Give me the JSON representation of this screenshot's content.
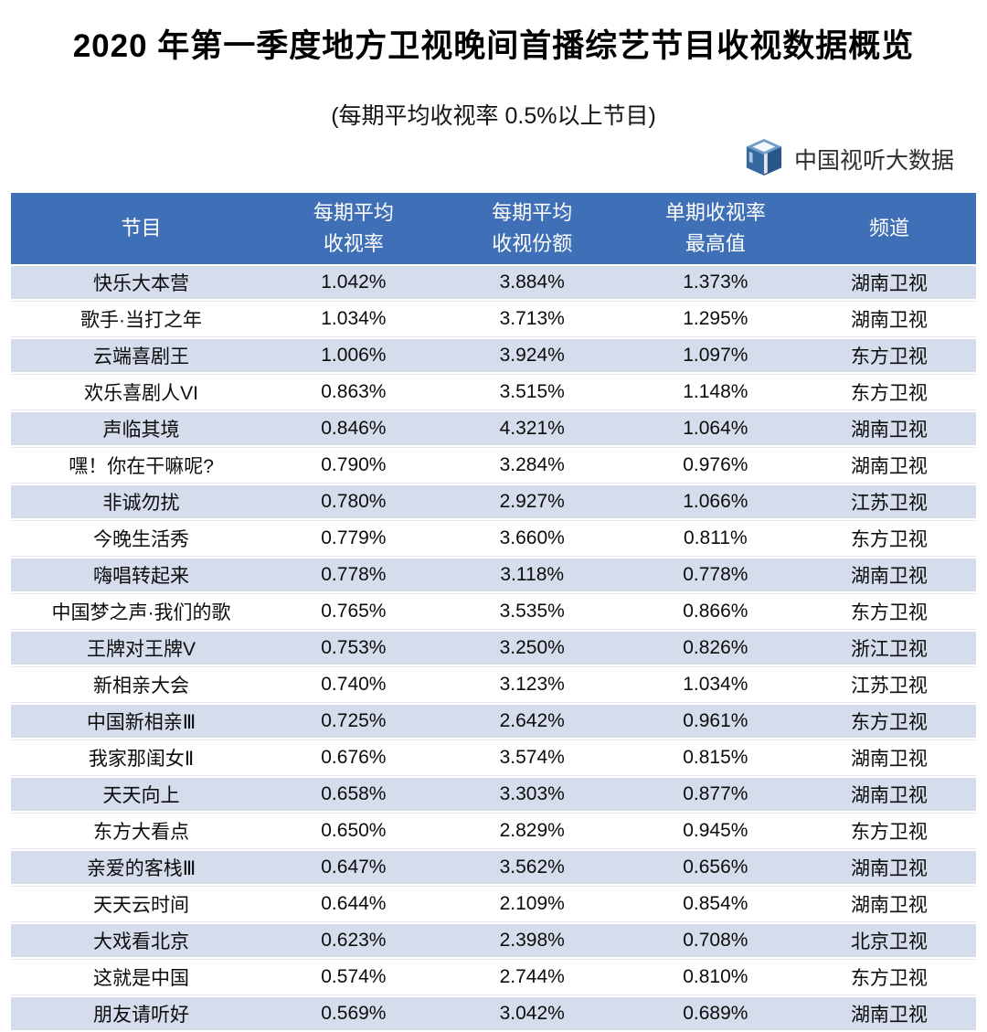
{
  "page": {
    "title": "2020 年第一季度地方卫视晚间首播综艺节目收视数据概览",
    "subtitle": "(每期平均收视率 0.5%以上节目)",
    "brand": {
      "icon": "cube-logo-icon",
      "name": "中国视听大数据"
    }
  },
  "colors": {
    "header_bg": "#3F6FB7",
    "row_alt_bg": "#D5DCEC",
    "row_bg": "#FFFFFF",
    "header_text": "#FFFFFF",
    "body_text": "#0C0C0C",
    "logo_blue_light": "#6E9CC8",
    "logo_blue_mid": "#35689E",
    "logo_blue_dark": "#2A5688"
  },
  "table": {
    "headers": [
      {
        "lines": [
          "节目"
        ]
      },
      {
        "lines": [
          "每期平均",
          "收视率"
        ]
      },
      {
        "lines": [
          "每期平均",
          "收视份额"
        ]
      },
      {
        "lines": [
          "单期收视率",
          "最高值"
        ]
      },
      {
        "lines": [
          "频道"
        ]
      }
    ]
  },
  "chart_data": {
    "type": "table",
    "title": "2020 年第一季度地方卫视晚间首播综艺节目收视数据概览",
    "subtitle": "(每期平均收视率 0.5%以上节目)",
    "source": "中国视听大数据",
    "columns": [
      "节目",
      "每期平均收视率",
      "每期平均收视份额",
      "单期收视率最高值",
      "频道"
    ],
    "rows": [
      [
        "快乐大本营",
        "1.042%",
        "3.884%",
        "1.373%",
        "湖南卫视"
      ],
      [
        "歌手·当打之年",
        "1.034%",
        "3.713%",
        "1.295%",
        "湖南卫视"
      ],
      [
        "云端喜剧王",
        "1.006%",
        "3.924%",
        "1.097%",
        "东方卫视"
      ],
      [
        "欢乐喜剧人VI",
        "0.863%",
        "3.515%",
        "1.148%",
        "东方卫视"
      ],
      [
        "声临其境",
        "0.846%",
        "4.321%",
        "1.064%",
        "湖南卫视"
      ],
      [
        "嘿！你在干嘛呢?",
        "0.790%",
        "3.284%",
        "0.976%",
        "湖南卫视"
      ],
      [
        "非诚勿扰",
        "0.780%",
        "2.927%",
        "1.066%",
        "江苏卫视"
      ],
      [
        "今晚生活秀",
        "0.779%",
        "3.660%",
        "0.811%",
        "东方卫视"
      ],
      [
        "嗨唱转起来",
        "0.778%",
        "3.118%",
        "0.778%",
        "湖南卫视"
      ],
      [
        "中国梦之声·我们的歌",
        "0.765%",
        "3.535%",
        "0.866%",
        "东方卫视"
      ],
      [
        "王牌对王牌V",
        "0.753%",
        "3.250%",
        "0.826%",
        "浙江卫视"
      ],
      [
        "新相亲大会",
        "0.740%",
        "3.123%",
        "1.034%",
        "江苏卫视"
      ],
      [
        "中国新相亲Ⅲ",
        "0.725%",
        "2.642%",
        "0.961%",
        "东方卫视"
      ],
      [
        "我家那闺女Ⅱ",
        "0.676%",
        "3.574%",
        "0.815%",
        "湖南卫视"
      ],
      [
        "天天向上",
        "0.658%",
        "3.303%",
        "0.877%",
        "湖南卫视"
      ],
      [
        "东方大看点",
        "0.650%",
        "2.829%",
        "0.945%",
        "东方卫视"
      ],
      [
        "亲爱的客栈Ⅲ",
        "0.647%",
        "3.562%",
        "0.656%",
        "湖南卫视"
      ],
      [
        "天天云时间",
        "0.644%",
        "2.109%",
        "0.854%",
        "湖南卫视"
      ],
      [
        "大戏看北京",
        "0.623%",
        "2.398%",
        "0.708%",
        "北京卫视"
      ],
      [
        "这就是中国",
        "0.574%",
        "2.744%",
        "0.810%",
        "东方卫视"
      ],
      [
        "朋友请听好",
        "0.569%",
        "3.042%",
        "0.689%",
        "湖南卫视"
      ]
    ]
  }
}
